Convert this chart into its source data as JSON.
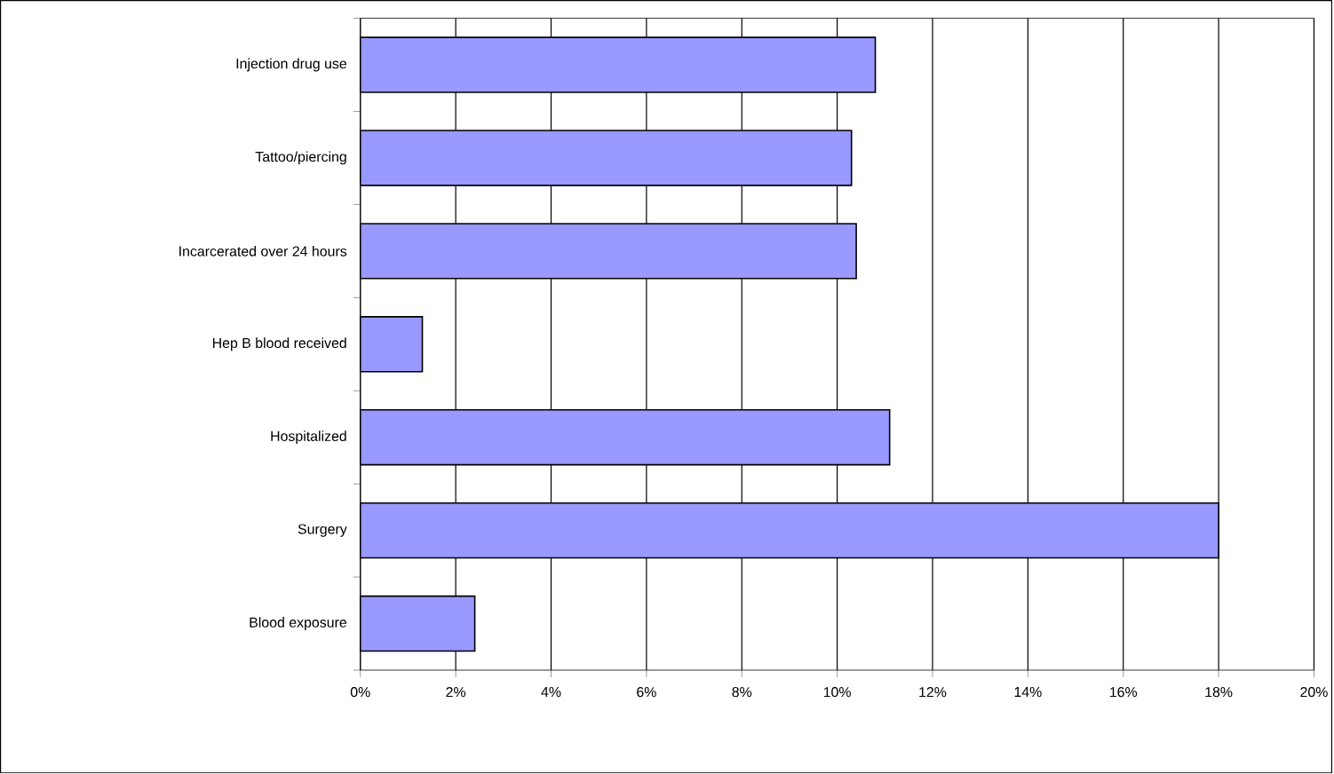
{
  "chart_data": {
    "type": "bar",
    "orientation": "horizontal",
    "categories": [
      "Injection drug use",
      "Tattoo/piercing",
      "Incarcerated over 24 hours",
      "Hep B blood received",
      "Hospitalized",
      "Surgery",
      "Blood exposure"
    ],
    "values": [
      10.8,
      10.3,
      10.4,
      1.3,
      11.1,
      18.0,
      2.4
    ],
    "color": "#9999ff",
    "xlim": [
      0,
      20
    ],
    "xticks": [
      {
        "value": 0,
        "label": "0%"
      },
      {
        "value": 2,
        "label": "2%"
      },
      {
        "value": 4,
        "label": "4%"
      },
      {
        "value": 6,
        "label": "6%"
      },
      {
        "value": 8,
        "label": "8%"
      },
      {
        "value": 10,
        "label": "10%"
      },
      {
        "value": 12,
        "label": "12%"
      },
      {
        "value": 14,
        "label": "14%"
      },
      {
        "value": 16,
        "label": "16%"
      },
      {
        "value": 18,
        "label": "18%"
      },
      {
        "value": 20,
        "label": "20%"
      }
    ],
    "grid": "x"
  }
}
